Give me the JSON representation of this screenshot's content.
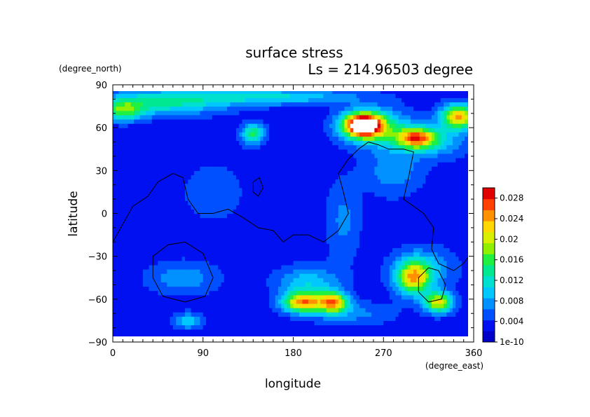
{
  "chart_data": {
    "type": "heatmap",
    "title": "surface stress",
    "subtitle": "Ls = 214.96503 degree",
    "xlabel": "longitude",
    "ylabel": "latitude",
    "xunit": "(degree_east)",
    "yunit": "(degree_north)",
    "xlim": [
      0,
      360
    ],
    "ylim": [
      -90,
      90
    ],
    "xticks": [
      0,
      90,
      180,
      270,
      360
    ],
    "yticks": [
      90,
      60,
      30,
      0,
      -30,
      -60,
      -90
    ],
    "x_tick_labels": [
      "0",
      "90",
      "180",
      "270",
      "360"
    ],
    "y_tick_labels": [
      "90",
      "60",
      "30",
      "0",
      "−30",
      "−60",
      "−90"
    ],
    "colorbar": {
      "range": [
        0,
        0.03
      ],
      "tick_values": [
        0.028,
        0.024,
        0.02,
        0.016,
        0.012,
        0.008,
        0.004,
        0
      ],
      "tick_labels": [
        "0.028",
        "0.024",
        "0.02",
        "0.016",
        "0.012",
        "0.008",
        "0.004",
        "1e-10"
      ],
      "colors": [
        "#0000c8",
        "#0010f0",
        "#0050ff",
        "#0090ff",
        "#00c8ff",
        "#00e0d0",
        "#00e890",
        "#20f040",
        "#90f000",
        "#d8f000",
        "#ffd800",
        "#ff9000",
        "#ff4000",
        "#e00000",
        "#ffffff"
      ]
    },
    "background_level": 0.003,
    "features": [
      {
        "lon": 250,
        "lat": 62,
        "peak": 0.034,
        "wlon": 14,
        "wlat": 6
      },
      {
        "lon": 265,
        "lat": 60,
        "peak": 0.012,
        "wlon": 25,
        "wlat": 9
      },
      {
        "lon": 345,
        "lat": 68,
        "peak": 0.024,
        "wlon": 12,
        "wlat": 6
      },
      {
        "lon": 303,
        "lat": 53,
        "peak": 0.022,
        "wlon": 14,
        "wlat": 5
      },
      {
        "lon": 320,
        "lat": 50,
        "peak": 0.009,
        "wlon": 25,
        "wlat": 8
      },
      {
        "lon": 140,
        "lat": 56,
        "peak": 0.015,
        "wlon": 8,
        "wlat": 5
      },
      {
        "lon": 50,
        "lat": 78,
        "peak": 0.013,
        "wlon": 45,
        "wlat": 6
      },
      {
        "lon": 160,
        "lat": 82,
        "peak": 0.011,
        "wlon": 60,
        "wlat": 4
      },
      {
        "lon": 10,
        "lat": 72,
        "peak": 0.014,
        "wlon": 15,
        "wlat": 5
      },
      {
        "lon": 280,
        "lat": 30,
        "peak": 0.008,
        "wlon": 20,
        "wlat": 12
      },
      {
        "lon": 230,
        "lat": -5,
        "peak": 0.007,
        "wlon": 12,
        "wlat": 20
      },
      {
        "lon": 190,
        "lat": -62,
        "peak": 0.024,
        "wlon": 14,
        "wlat": 5
      },
      {
        "lon": 220,
        "lat": -62,
        "peak": 0.023,
        "wlon": 10,
        "wlat": 5
      },
      {
        "lon": 195,
        "lat": -48,
        "peak": 0.01,
        "wlon": 22,
        "wlat": 8
      },
      {
        "lon": 300,
        "lat": -45,
        "peak": 0.021,
        "wlon": 12,
        "wlat": 8
      },
      {
        "lon": 325,
        "lat": -62,
        "peak": 0.021,
        "wlon": 10,
        "wlat": 5
      },
      {
        "lon": 310,
        "lat": -38,
        "peak": 0.009,
        "wlon": 22,
        "wlat": 10
      },
      {
        "lon": 75,
        "lat": -75,
        "peak": 0.01,
        "wlon": 10,
        "wlat": 4
      },
      {
        "lon": 70,
        "lat": -45,
        "peak": 0.008,
        "wlon": 25,
        "wlat": 8
      },
      {
        "lon": 240,
        "lat": -70,
        "peak": 0.007,
        "wlon": 30,
        "wlat": 6
      },
      {
        "lon": 100,
        "lat": 15,
        "peak": 0.005,
        "wlon": 30,
        "wlat": 20
      }
    ],
    "topography_contours": [
      {
        "name": "main",
        "points": [
          [
            0,
            -20
          ],
          [
            8,
            -10
          ],
          [
            20,
            5
          ],
          [
            35,
            12
          ],
          [
            45,
            22
          ],
          [
            60,
            28
          ],
          [
            70,
            25
          ],
          [
            75,
            10
          ],
          [
            85,
            0
          ],
          [
            100,
            0
          ],
          [
            115,
            3
          ],
          [
            130,
            -3
          ],
          [
            145,
            -10
          ],
          [
            160,
            -12
          ],
          [
            170,
            -20
          ],
          [
            180,
            -15
          ],
          [
            195,
            -15
          ],
          [
            210,
            -20
          ],
          [
            225,
            -12
          ],
          [
            235,
            0
          ],
          [
            230,
            15
          ],
          [
            225,
            28
          ],
          [
            235,
            38
          ],
          [
            245,
            45
          ],
          [
            255,
            50
          ],
          [
            265,
            48
          ],
          [
            275,
            45
          ],
          [
            290,
            45
          ],
          [
            300,
            43
          ],
          [
            295,
            25
          ],
          [
            290,
            10
          ],
          [
            300,
            5
          ],
          [
            310,
            0
          ],
          [
            320,
            -10
          ],
          [
            318,
            -25
          ],
          [
            325,
            -35
          ],
          [
            340,
            -40
          ],
          [
            350,
            -35
          ],
          [
            355,
            -30
          ]
        ]
      },
      {
        "name": "loop-west",
        "points": [
          [
            40,
            -30
          ],
          [
            55,
            -22
          ],
          [
            72,
            -20
          ],
          [
            90,
            -28
          ],
          [
            100,
            -45
          ],
          [
            92,
            -58
          ],
          [
            72,
            -62
          ],
          [
            50,
            -58
          ],
          [
            40,
            -45
          ],
          [
            40,
            -30
          ]
        ]
      },
      {
        "name": "loop-east",
        "points": [
          [
            305,
            -45
          ],
          [
            315,
            -38
          ],
          [
            325,
            -40
          ],
          [
            332,
            -50
          ],
          [
            328,
            -60
          ],
          [
            315,
            -62
          ],
          [
            305,
            -55
          ],
          [
            305,
            -45
          ]
        ]
      },
      {
        "name": "loop-small",
        "points": [
          [
            140,
            22
          ],
          [
            146,
            25
          ],
          [
            150,
            18
          ],
          [
            145,
            12
          ],
          [
            140,
            15
          ],
          [
            140,
            22
          ]
        ]
      }
    ]
  }
}
